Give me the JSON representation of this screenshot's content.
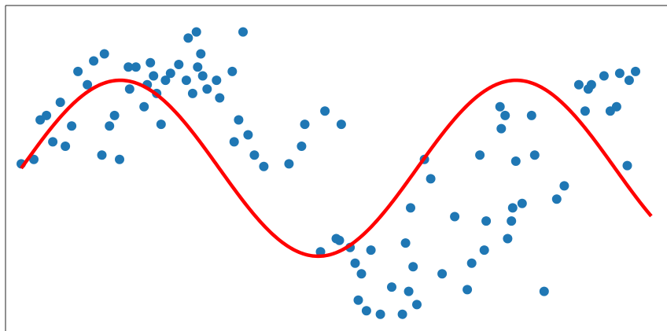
{
  "chart_data": {
    "type": "scatter",
    "title": "",
    "xlabel": "",
    "ylabel": "",
    "grid": false,
    "axes_visible": false,
    "xlim": [
      -0.25,
      10.25
    ],
    "ylim": [
      -1.85,
      1.85
    ],
    "series": [
      {
        "type": "scatter",
        "color": "#1f77b4",
        "x": [
          0.0,
          0.2,
          0.3,
          0.4,
          0.5,
          0.62,
          0.7,
          0.8,
          0.9,
          1.05,
          1.15,
          1.28,
          1.32,
          1.4,
          1.48,
          1.56,
          1.7,
          1.72,
          1.82,
          1.95,
          2.0,
          2.05,
          2.1,
          2.15,
          2.22,
          2.29,
          2.37,
          2.5,
          2.62,
          2.65,
          2.72,
          2.78,
          2.8,
          2.85,
          2.88,
          2.95,
          3.1,
          3.15,
          3.35,
          3.38,
          3.45,
          3.52,
          3.6,
          3.7,
          3.85,
          4.25,
          4.45,
          4.5,
          4.75,
          4.82,
          5.0,
          5.05,
          5.08,
          5.22,
          5.3,
          5.35,
          5.4,
          5.48,
          5.55,
          5.7,
          5.88,
          6.05,
          6.1,
          6.15,
          6.18,
          6.22,
          6.28,
          6.4,
          6.5,
          6.68,
          6.88,
          7.08,
          7.15,
          7.28,
          7.35,
          7.38,
          7.6,
          7.62,
          7.68,
          7.72,
          7.78,
          7.8,
          7.85,
          7.95,
          8.1,
          8.15,
          8.3,
          8.5,
          8.62,
          8.85,
          8.95,
          9.0,
          9.05,
          9.25,
          9.35,
          9.45,
          9.5,
          9.62,
          9.65,
          9.75
        ],
        "y": [
          0.05,
          0.1,
          0.55,
          0.6,
          0.3,
          0.75,
          0.25,
          0.48,
          1.1,
          0.95,
          1.22,
          0.15,
          1.3,
          0.48,
          0.6,
          0.1,
          1.15,
          0.9,
          1.15,
          0.7,
          0.95,
          1.2,
          1.05,
          0.85,
          0.5,
          1.0,
          1.08,
          1.18,
          1.0,
          1.48,
          0.85,
          1.55,
          1.15,
          1.3,
          1.05,
          0.9,
          1.0,
          0.8,
          1.1,
          0.3,
          0.55,
          1.55,
          0.38,
          0.15,
          0.02,
          0.05,
          0.25,
          0.5,
          -0.95,
          0.65,
          -0.8,
          -0.82,
          0.5,
          -0.9,
          -1.08,
          -1.5,
          -1.2,
          -1.62,
          -0.93,
          -1.66,
          -1.35,
          -1.66,
          -0.85,
          -1.4,
          -0.45,
          -1.12,
          -1.55,
          0.1,
          -0.12,
          -1.2,
          -0.55,
          -1.38,
          -1.08,
          0.15,
          -0.93,
          -0.6,
          0.7,
          0.45,
          0.6,
          -0.8,
          -0.6,
          -0.45,
          0.08,
          -0.4,
          0.6,
          0.15,
          -1.4,
          -0.35,
          -0.2,
          0.95,
          0.65,
          0.9,
          0.95,
          1.05,
          0.65,
          0.7,
          1.08,
          0.03,
          1.0,
          1.1
        ],
        "y_extra_note": ""
      },
      {
        "type": "line",
        "color": "#ff0000",
        "function": "sin",
        "x_range": [
          0,
          10
        ],
        "amplitude": 1.0,
        "offset": 0.0
      }
    ]
  }
}
